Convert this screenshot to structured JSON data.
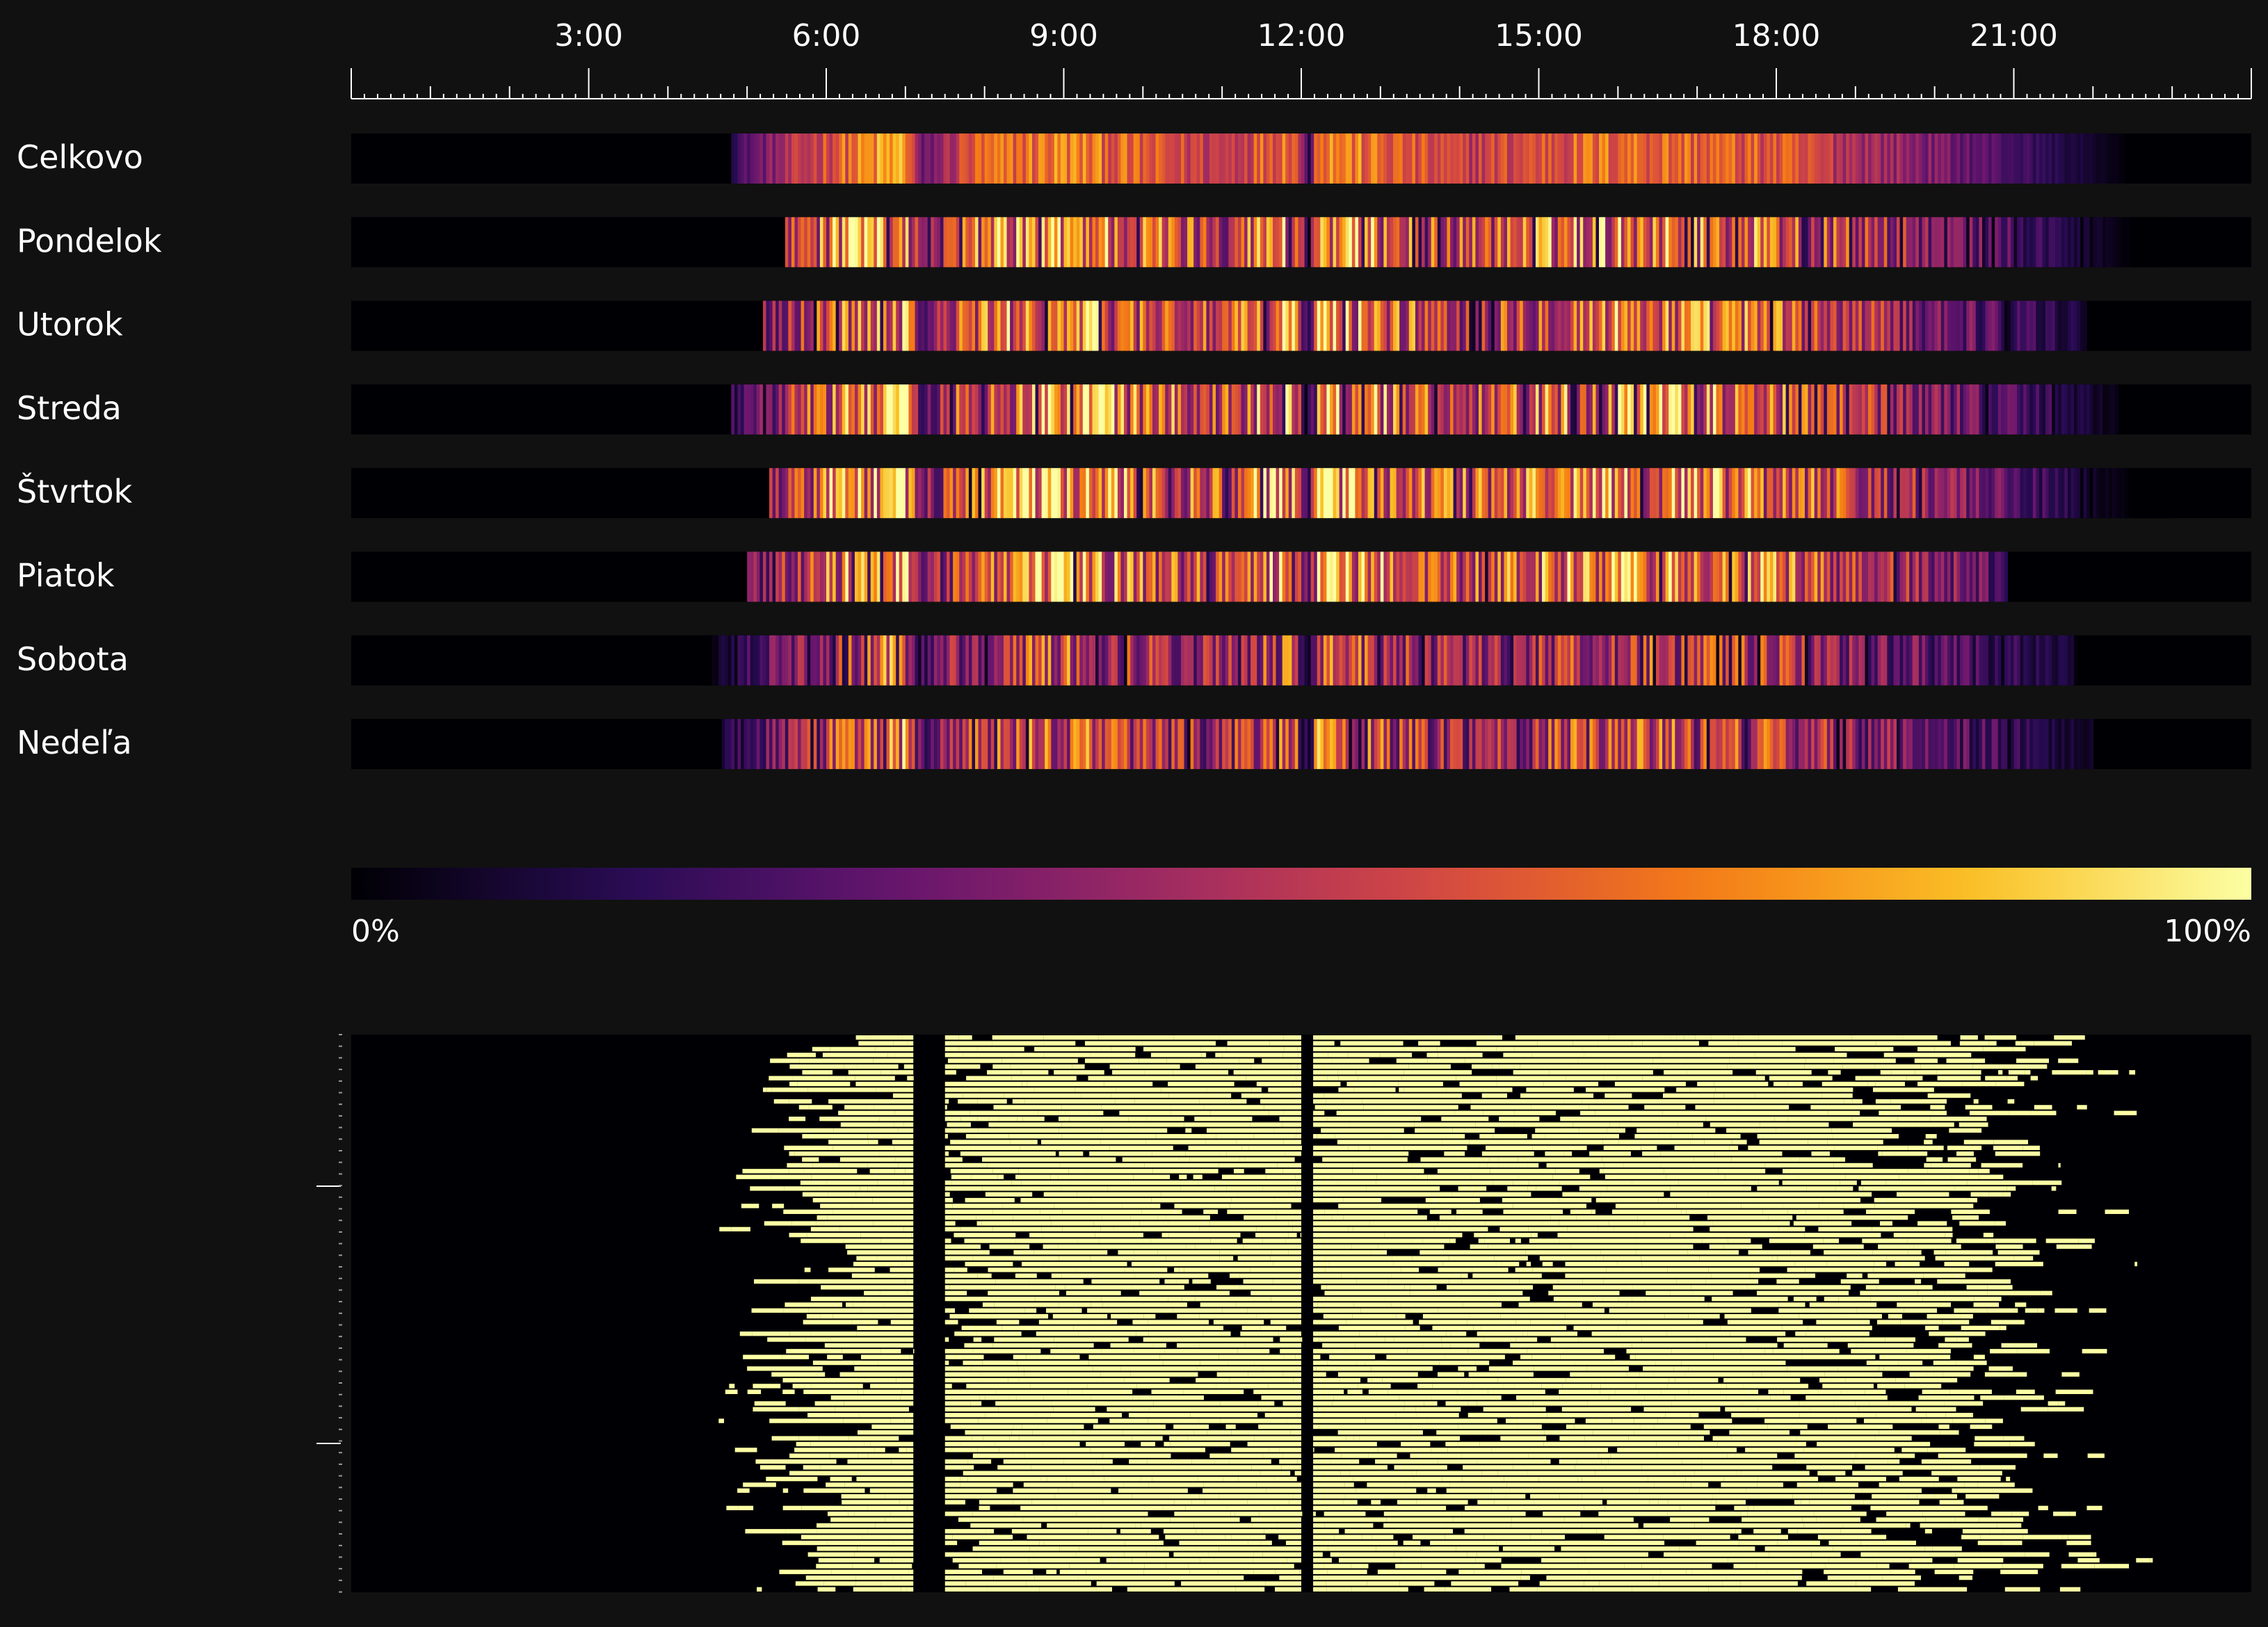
{
  "chart_data": [
    {
      "type": "heatmap",
      "title": "",
      "xlabel": "",
      "ylabel": "",
      "x_range": [
        "0:00",
        "24:00"
      ],
      "x_tick_labels": [
        "3:00",
        "6:00",
        "9:00",
        "12:00",
        "15:00",
        "18:00",
        "21:00"
      ],
      "x_ticks_hours": [
        3,
        6,
        9,
        12,
        15,
        18,
        21
      ],
      "minor_tick_minutes": 10,
      "rows": [
        "Celkovo",
        "Pondelok",
        "Utorok",
        "Streda",
        "Štvrtok",
        "Piatok",
        "Sobota",
        "Nedeľa"
      ],
      "colormap": "inferno",
      "value_range": [
        0,
        100
      ],
      "value_unit": "%",
      "colorbar": {
        "min_label": "0%",
        "max_label": "100%"
      },
      "activity_profile_hours": [
        [
          0,
          0
        ],
        [
          4.5,
          0
        ],
        [
          5,
          30
        ],
        [
          6,
          70
        ],
        [
          7,
          95
        ],
        [
          7.2,
          30
        ],
        [
          7.8,
          70
        ],
        [
          9,
          85
        ],
        [
          10,
          70
        ],
        [
          11,
          60
        ],
        [
          11.9,
          85
        ],
        [
          12.1,
          15
        ],
        [
          12.2,
          90
        ],
        [
          13,
          75
        ],
        [
          14,
          60
        ],
        [
          16,
          80
        ],
        [
          18,
          70
        ],
        [
          19,
          55
        ],
        [
          20,
          40
        ],
        [
          21,
          25
        ],
        [
          22,
          8
        ],
        [
          22.5,
          0
        ],
        [
          24,
          0
        ]
      ],
      "day_profiles": [
        {
          "row": "Celkovo",
          "start": 4.8,
          "end": 22.4,
          "base": 0.85,
          "noise": 0.25
        },
        {
          "row": "Pondelok",
          "start": 5.5,
          "end": 22.9,
          "base": 0.9,
          "noise": 0.55
        },
        {
          "row": "Utorok",
          "start": 5.2,
          "end": 21.9,
          "base": 0.85,
          "noise": 0.55
        },
        {
          "row": "Streda",
          "start": 4.8,
          "end": 22.3,
          "base": 0.9,
          "noise": 0.55
        },
        {
          "row": "Štvrtok",
          "start": 5.3,
          "end": 23.0,
          "base": 0.95,
          "noise": 0.55
        },
        {
          "row": "Piatok",
          "start": 5.0,
          "end": 20.9,
          "base": 0.9,
          "noise": 0.55
        },
        {
          "row": "Sobota",
          "start": 4.4,
          "end": 21.8,
          "base": 0.65,
          "noise": 0.6
        },
        {
          "row": "Nedeľa",
          "start": 4.7,
          "end": 22.0,
          "base": 0.7,
          "noise": 0.6
        }
      ]
    },
    {
      "type": "heatmap",
      "title": "",
      "xlabel": "",
      "ylabel": "",
      "x_range": [
        "0:00",
        "24:00"
      ],
      "color_active": "#fcffa4",
      "color_inactive": "#000004",
      "row_count": 96,
      "activity_window_hours": [
        4.4,
        23.5
      ],
      "observed_gaps_hours": [
        [
          7.1,
          7.5
        ],
        [
          12.0,
          12.15
        ]
      ]
    }
  ]
}
